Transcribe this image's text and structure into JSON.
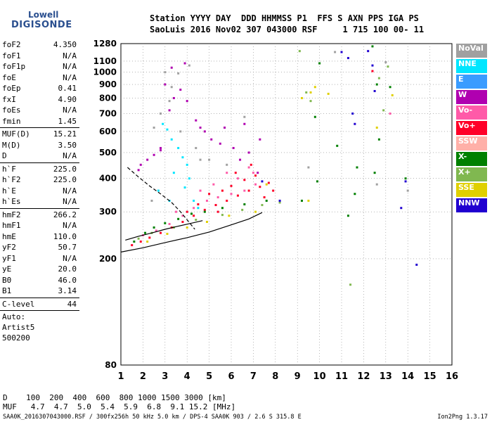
{
  "logo": {
    "line1": "Lowell",
    "line2": "DIGISONDE"
  },
  "header": {
    "line1": "Station YYYY DAY  DDD HHMMSS P1  FFS S AXN PPS IGA PS",
    "line2": "SaoLuis 2016 Nov02 307 043000 RSF     1 715 100 00- 11"
  },
  "params": [
    {
      "k": "foF2",
      "v": "4.350"
    },
    {
      "k": "foF1",
      "v": "N/A"
    },
    {
      "k": "foF1p",
      "v": "N/A"
    },
    {
      "k": "foE",
      "v": "N/A"
    },
    {
      "k": "foEp",
      "v": "0.41"
    },
    {
      "k": "fxI",
      "v": "4.90"
    },
    {
      "k": "foEs",
      "v": "N/A"
    },
    {
      "k": "fmin",
      "v": "1.45"
    },
    {
      "sep": true
    },
    {
      "k": "MUF(D)",
      "v": "15.21"
    },
    {
      "k": "M(D)",
      "v": "3.50"
    },
    {
      "k": "D",
      "v": "N/A"
    },
    {
      "sep": true
    },
    {
      "k": "h`F",
      "v": "225.0"
    },
    {
      "k": "h`F2",
      "v": "225.0"
    },
    {
      "k": "h`E",
      "v": "N/A"
    },
    {
      "k": "h`Es",
      "v": "N/A"
    },
    {
      "sep": true
    },
    {
      "k": "hmF2",
      "v": "266.2"
    },
    {
      "k": "hmF1",
      "v": "N/A"
    },
    {
      "k": "hmE",
      "v": "110.0"
    },
    {
      "k": "yF2",
      "v": "50.7"
    },
    {
      "k": "yF1",
      "v": "N/A"
    },
    {
      "k": "yE",
      "v": "20.0"
    },
    {
      "k": "B0",
      "v": "46.0"
    },
    {
      "k": "B1",
      "v": "3.14"
    },
    {
      "sep": true
    },
    {
      "k": "C-level",
      "v": "44"
    },
    {
      "sep": true
    }
  ],
  "auto": [
    "Auto:",
    "Artist5",
    "500200"
  ],
  "legend": [
    {
      "label": "NoVal",
      "color": "#a0a0a0"
    },
    {
      "label": "NNE",
      "color": "#00e6ff"
    },
    {
      "label": "E",
      "color": "#3a9cff"
    },
    {
      "label": "W",
      "color": "#b000b0"
    },
    {
      "label": "Vo-",
      "color": "#ff5aa8"
    },
    {
      "label": "Vo+",
      "color": "#ff0028"
    },
    {
      "label": "SSW",
      "color": "#ffb0a8"
    },
    {
      "label": "X-",
      "color": "#008000"
    },
    {
      "label": "X+",
      "color": "#80b850"
    },
    {
      "label": "SSE",
      "color": "#e0d000"
    },
    {
      "label": "NNW",
      "color": "#2000d0"
    }
  ],
  "muf_table": {
    "row1": "D    100  200  400  600  800 1000 1500 3000 [km]",
    "row2": "MUF   4.7  4.7  5.0  5.4  5.9  6.8  9.1 15.2 [MHz]"
  },
  "footer": "SAA0K_2016307043000.RSF / 300fx256h 50 kHz 5.0 km / DPS-4 SAA0K 903 / 2.6 S 315.8 E",
  "version": "Ion2Png 1.3.17",
  "chart_data": {
    "type": "scatter",
    "title": "",
    "xlabel": "",
    "ylabel": "",
    "x_range": [
      1,
      16
    ],
    "x_ticks": [
      1,
      2,
      3,
      4,
      5,
      6,
      7,
      8,
      9,
      10,
      11,
      12,
      13,
      14,
      15,
      16
    ],
    "y_scale": "log",
    "y_range": [
      80,
      1280
    ],
    "y_ticks": [
      80,
      200,
      300,
      400,
      500,
      600,
      700,
      800,
      900,
      1000,
      1100,
      1280
    ],
    "grid": true,
    "series": [
      {
        "name": "NNE",
        "color": "#00e6ff",
        "points": [
          [
            2.9,
            640
          ],
          [
            3.1,
            610
          ],
          [
            3.3,
            560
          ],
          [
            3.6,
            520
          ],
          [
            3.8,
            480
          ],
          [
            4.0,
            450
          ],
          [
            4.1,
            400
          ],
          [
            3.4,
            420
          ],
          [
            3.9,
            370
          ],
          [
            4.3,
            330
          ],
          [
            2.7,
            360
          ],
          [
            3.2,
            330
          ],
          [
            4.5,
            310
          ]
        ]
      },
      {
        "name": "W",
        "color": "#b000b0",
        "points": [
          [
            1.9,
            450
          ],
          [
            2.2,
            470
          ],
          [
            2.5,
            490
          ],
          [
            2.8,
            510
          ],
          [
            3.2,
            720
          ],
          [
            3.4,
            800
          ],
          [
            3.7,
            860
          ],
          [
            4.0,
            780
          ],
          [
            4.4,
            660
          ],
          [
            4.8,
            600
          ],
          [
            5.1,
            560
          ],
          [
            5.5,
            540
          ],
          [
            6.1,
            520
          ],
          [
            6.8,
            500
          ],
          [
            7.3,
            560
          ],
          [
            5.7,
            620
          ],
          [
            3.0,
            900
          ],
          [
            3.3,
            1040
          ],
          [
            3.9,
            1080
          ],
          [
            2.8,
            520
          ],
          [
            4.6,
            620
          ],
          [
            6.4,
            470
          ],
          [
            7.2,
            420
          ],
          [
            1.8,
            430
          ],
          [
            6.6,
            640
          ]
        ]
      },
      {
        "name": "Vo-",
        "color": "#ff5aa8",
        "points": [
          [
            2.0,
            245
          ],
          [
            2.6,
            255
          ],
          [
            3.2,
            270
          ],
          [
            3.8,
            290
          ],
          [
            4.3,
            310
          ],
          [
            4.9,
            330
          ],
          [
            5.4,
            340
          ],
          [
            6.0,
            350
          ],
          [
            6.6,
            360
          ],
          [
            7.1,
            380
          ],
          [
            5.2,
            380
          ],
          [
            6.3,
            400
          ],
          [
            7.0,
            420
          ],
          [
            4.6,
            360
          ],
          [
            3.5,
            300
          ],
          [
            6.8,
            440
          ],
          [
            5.8,
            420
          ],
          [
            13.2,
            700
          ]
        ]
      },
      {
        "name": "Vo+",
        "color": "#ff0028",
        "points": [
          [
            1.5,
            225
          ],
          [
            1.9,
            232
          ],
          [
            2.3,
            240
          ],
          [
            2.8,
            250
          ],
          [
            3.3,
            262
          ],
          [
            3.8,
            275
          ],
          [
            4.3,
            290
          ],
          [
            4.8,
            305
          ],
          [
            5.3,
            318
          ],
          [
            5.8,
            330
          ],
          [
            6.3,
            345
          ],
          [
            6.8,
            360
          ],
          [
            7.3,
            372
          ],
          [
            7.7,
            385
          ],
          [
            5.0,
            350
          ],
          [
            6.0,
            375
          ],
          [
            6.6,
            395
          ],
          [
            7.1,
            410
          ],
          [
            6.9,
            450
          ],
          [
            5.6,
            360
          ],
          [
            4.5,
            320
          ],
          [
            4.0,
            300
          ],
          [
            7.5,
            340
          ],
          [
            7.9,
            360
          ],
          [
            6.2,
            420
          ],
          [
            5.4,
            300
          ],
          [
            12.4,
            1010
          ]
        ]
      },
      {
        "name": "X-",
        "color": "#008000",
        "points": [
          [
            1.6,
            232
          ],
          [
            2.1,
            250
          ],
          [
            2.5,
            262
          ],
          [
            3.0,
            272
          ],
          [
            3.6,
            282
          ],
          [
            4.2,
            295
          ],
          [
            4.8,
            300
          ],
          [
            5.6,
            310
          ],
          [
            6.6,
            320
          ],
          [
            7.6,
            330
          ],
          [
            9.9,
            390
          ],
          [
            10.0,
            1080
          ],
          [
            9.8,
            680
          ],
          [
            11.3,
            290
          ],
          [
            11.6,
            350
          ],
          [
            12.4,
            1250
          ],
          [
            12.6,
            900
          ],
          [
            13.2,
            880
          ],
          [
            12.7,
            560
          ],
          [
            11.7,
            440
          ],
          [
            12.5,
            420
          ],
          [
            13.9,
            400
          ],
          [
            9.2,
            330
          ],
          [
            10.8,
            530
          ]
        ]
      },
      {
        "name": "X+",
        "color": "#80b850",
        "points": [
          [
            1.8,
            238
          ],
          [
            2.4,
            250
          ],
          [
            3.4,
            262
          ],
          [
            4.4,
            280
          ],
          [
            5.6,
            292
          ],
          [
            6.5,
            305
          ],
          [
            7.4,
            318
          ],
          [
            8.2,
            325
          ],
          [
            9.6,
            780
          ],
          [
            9.1,
            1200
          ],
          [
            12.7,
            950
          ],
          [
            13.1,
            1050
          ],
          [
            12.9,
            720
          ],
          [
            9.4,
            840
          ],
          [
            11.4,
            160
          ]
        ]
      },
      {
        "name": "SSE",
        "color": "#e0d000",
        "points": [
          [
            2.2,
            232
          ],
          [
            3.1,
            248
          ],
          [
            4.0,
            262
          ],
          [
            4.9,
            275
          ],
          [
            5.9,
            290
          ],
          [
            7.1,
            300
          ],
          [
            7.6,
            380
          ],
          [
            9.5,
            330
          ],
          [
            9.6,
            840
          ],
          [
            9.8,
            880
          ],
          [
            13.3,
            820
          ],
          [
            12.6,
            620
          ],
          [
            10.4,
            830
          ],
          [
            9.2,
            800
          ]
        ]
      },
      {
        "name": "NNW",
        "color": "#2000d0",
        "points": [
          [
            7.4,
            390
          ],
          [
            11.0,
            1190
          ],
          [
            11.3,
            1130
          ],
          [
            11.5,
            700
          ],
          [
            12.2,
            1200
          ],
          [
            12.5,
            850
          ],
          [
            13.9,
            390
          ],
          [
            14.4,
            190
          ],
          [
            11.6,
            640
          ],
          [
            12.4,
            1060
          ],
          [
            13.7,
            310
          ],
          [
            8.2,
            330
          ]
        ]
      },
      {
        "name": "NoVal",
        "color": "#a0a0a0",
        "points": [
          [
            3.0,
            1000
          ],
          [
            3.6,
            990
          ],
          [
            4.1,
            1060
          ],
          [
            3.3,
            880
          ],
          [
            2.8,
            700
          ],
          [
            2.5,
            620
          ],
          [
            4.4,
            520
          ],
          [
            5.0,
            470
          ],
          [
            3.7,
            600
          ],
          [
            3.2,
            780
          ],
          [
            4.6,
            470
          ],
          [
            5.8,
            450
          ],
          [
            6.6,
            680
          ],
          [
            2.4,
            330
          ],
          [
            9.5,
            440
          ],
          [
            10.7,
            1190
          ],
          [
            12.6,
            380
          ],
          [
            13.0,
            1090
          ],
          [
            14.0,
            360
          ]
        ]
      }
    ],
    "model_curves": [
      {
        "style": "dashed",
        "points": [
          [
            1.3,
            440
          ],
          [
            1.8,
            405
          ],
          [
            2.3,
            375
          ],
          [
            2.8,
            350
          ],
          [
            3.3,
            325
          ],
          [
            3.7,
            300
          ],
          [
            4.0,
            280
          ],
          [
            4.35,
            258
          ]
        ]
      },
      {
        "style": "solid",
        "points": [
          [
            1.0,
            212
          ],
          [
            2.0,
            220
          ],
          [
            3.0,
            230
          ],
          [
            4.0,
            240
          ],
          [
            5.0,
            252
          ],
          [
            6.0,
            268
          ],
          [
            6.8,
            282
          ],
          [
            7.4,
            298
          ]
        ]
      },
      {
        "style": "solid",
        "points": [
          [
            1.2,
            235
          ],
          [
            1.8,
            243
          ],
          [
            2.4,
            250
          ],
          [
            3.0,
            258
          ],
          [
            3.6,
            265
          ],
          [
            4.2,
            272
          ],
          [
            4.7,
            278
          ]
        ]
      }
    ]
  }
}
